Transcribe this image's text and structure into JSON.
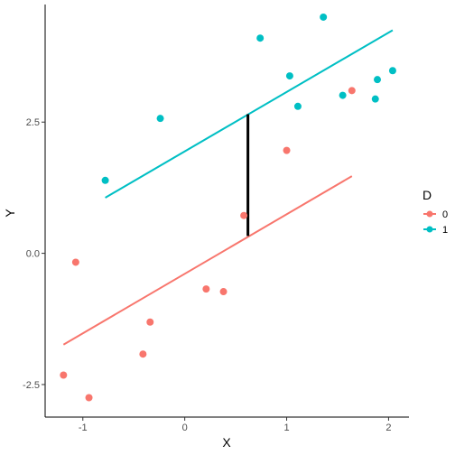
{
  "chart_data": {
    "type": "scatter",
    "xlabel": "X",
    "ylabel": "Y",
    "xlim": [
      -1.37,
      2.2
    ],
    "ylim": [
      -3.12,
      4.74
    ],
    "x_ticks": [
      -1,
      0,
      1,
      2
    ],
    "x_tick_labels": [
      "-1",
      "0",
      "1",
      "2"
    ],
    "y_ticks": [
      -2.5,
      0.0,
      2.5
    ],
    "y_tick_labels": [
      "-2.5",
      "0.0",
      "2.5"
    ],
    "grid": false,
    "legend": {
      "title": "D",
      "placement": "right",
      "entries": [
        "0",
        "1"
      ]
    },
    "series": [
      {
        "name": "0",
        "color": "#F8766D",
        "points": [
          {
            "x": -1.19,
            "y": -2.32
          },
          {
            "x": -0.94,
            "y": -2.75
          },
          {
            "x": -1.07,
            "y": -0.17
          },
          {
            "x": -0.41,
            "y": -1.92
          },
          {
            "x": -0.34,
            "y": -1.31
          },
          {
            "x": 0.21,
            "y": -0.68
          },
          {
            "x": 0.38,
            "y": -0.73
          },
          {
            "x": 0.58,
            "y": 0.72
          },
          {
            "x": 1.0,
            "y": 1.96
          },
          {
            "x": 1.64,
            "y": 3.1
          }
        ],
        "fit_line": {
          "x": [
            -1.19,
            1.64
          ],
          "y": [
            -1.74,
            1.47
          ]
        }
      },
      {
        "name": "1",
        "color": "#00BFC4",
        "points": [
          {
            "x": -0.78,
            "y": 1.39
          },
          {
            "x": -0.24,
            "y": 2.57
          },
          {
            "x": 0.74,
            "y": 4.1
          },
          {
            "x": 1.03,
            "y": 3.38
          },
          {
            "x": 1.11,
            "y": 2.8
          },
          {
            "x": 1.36,
            "y": 4.5
          },
          {
            "x": 1.55,
            "y": 3.01
          },
          {
            "x": 1.87,
            "y": 2.94
          },
          {
            "x": 1.89,
            "y": 3.31
          },
          {
            "x": 2.04,
            "y": 3.48
          }
        ],
        "fit_line": {
          "x": [
            -0.78,
            2.04
          ],
          "y": [
            1.06,
            4.25
          ]
        }
      }
    ],
    "annotations": [
      {
        "type": "segment",
        "color": "#000000",
        "x": [
          0.62,
          0.62
        ],
        "y": [
          0.33,
          2.65
        ]
      }
    ]
  }
}
